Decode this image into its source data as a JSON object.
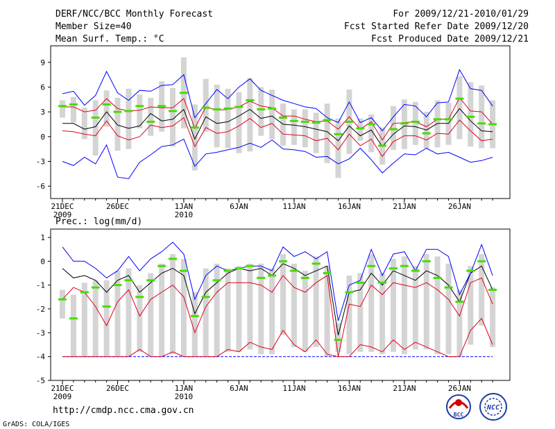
{
  "header": {
    "title": "DERF/NCC/BCC Monthly Forecast",
    "member_size": "Member Size=40",
    "variable": "Mean Surf. Temp.: °C",
    "period": "For 2009/12/21-2010/01/29",
    "started": "Fcst Started Refer Date 2009/12/20",
    "produced": "Fcst Produced Date 2009/12/21"
  },
  "footer": {
    "url": "http://cmdp.ncc.cma.gov.cn",
    "credit": "GrADS: COLA/IGES",
    "logo_bcc": "BCC",
    "logo_ncc": "NCC"
  },
  "colors": {
    "median": "#000000",
    "quartile": "#e0001a",
    "extreme": "#0000ff",
    "box": "#d4d4d4",
    "mean": "#44dd00"
  },
  "date_ticks": [
    {
      "label": "21DEC",
      "sub": "2009",
      "day": 0
    },
    {
      "label": "26DEC",
      "sub": "",
      "day": 5
    },
    {
      "label": "1JAN",
      "sub": "2010",
      "day": 11
    },
    {
      "label": "6JAN",
      "sub": "",
      "day": 16
    },
    {
      "label": "11JAN",
      "sub": "",
      "day": 21
    },
    {
      "label": "16JAN",
      "sub": "",
      "day": 26
    },
    {
      "label": "21JAN",
      "sub": "",
      "day": 31
    },
    {
      "label": "26JAN",
      "sub": "",
      "day": 36
    }
  ],
  "chart_data": [
    {
      "type": "line",
      "title": "Mean Surf. Temp.: °C",
      "ylabel": "°C",
      "ylim": [
        -7.5,
        11
      ],
      "yticks": [
        9,
        6,
        3,
        0,
        -3,
        -6
      ],
      "x": [
        0,
        1,
        2,
        3,
        4,
        5,
        6,
        7,
        8,
        9,
        10,
        11,
        12,
        13,
        14,
        15,
        16,
        17,
        18,
        19,
        20,
        21,
        22,
        23,
        24,
        25,
        26,
        27,
        28,
        29,
        30,
        31,
        32,
        33,
        34,
        35,
        36,
        37,
        38,
        39
      ],
      "series": [
        {
          "name": "max",
          "values": [
            5.2,
            5.5,
            3.8,
            5.0,
            7.9,
            5.3,
            4.4,
            5.6,
            5.5,
            6.2,
            6.3,
            7.5,
            2.3,
            4.0,
            5.7,
            4.6,
            6.0,
            7.0,
            5.6,
            5.0,
            4.4,
            4.0,
            3.6,
            3.4,
            2.3,
            1.7,
            4.2,
            1.7,
            2.3,
            0.7,
            2.4,
            3.9,
            3.7,
            2.4,
            4.1,
            4.2,
            8.1,
            5.8,
            5.6,
            3.7
          ]
        },
        {
          "name": "q75",
          "values": [
            3.6,
            3.6,
            3.0,
            3.2,
            4.6,
            3.4,
            3.1,
            3.2,
            3.6,
            3.5,
            3.5,
            4.6,
            1.0,
            3.6,
            3.2,
            3.3,
            3.6,
            4.3,
            3.7,
            3.5,
            2.5,
            2.5,
            2.1,
            1.8,
            1.9,
            0.9,
            2.4,
            0.9,
            1.8,
            -0.4,
            1.6,
            1.7,
            1.8,
            1.2,
            2.1,
            2.1,
            4.7,
            3.1,
            3.0,
            1.5
          ]
        },
        {
          "name": "median",
          "values": [
            1.6,
            1.6,
            0.9,
            1.2,
            3.0,
            1.4,
            1.0,
            1.3,
            2.8,
            1.9,
            2.1,
            3.3,
            -0.3,
            2.4,
            1.6,
            1.8,
            2.5,
            3.3,
            2.2,
            2.5,
            1.5,
            1.4,
            1.2,
            0.9,
            0.6,
            -0.5,
            1.3,
            0.1,
            0.8,
            -1.2,
            0.3,
            1.3,
            1.2,
            0.8,
            1.6,
            1.6,
            3.4,
            1.9,
            0.7,
            0.6
          ]
        },
        {
          "name": "q25",
          "values": [
            0.7,
            0.6,
            0.3,
            0.1,
            1.9,
            0.1,
            -0.4,
            0.0,
            1.4,
            1.1,
            1.3,
            2.3,
            -1.2,
            1.1,
            0.4,
            0.6,
            1.3,
            2.2,
            1.1,
            1.6,
            0.3,
            0.2,
            0.1,
            -0.5,
            -0.2,
            -1.6,
            0.3,
            -1.1,
            -0.3,
            -2.4,
            -0.6,
            0.1,
            0.1,
            -0.4,
            0.4,
            0.3,
            2.0,
            0.7,
            -0.5,
            -0.3
          ]
        },
        {
          "name": "min",
          "values": [
            -3.0,
            -3.5,
            -2.5,
            -3.3,
            -1.0,
            -4.9,
            -5.1,
            -3.1,
            -2.2,
            -1.2,
            -1.0,
            -0.3,
            -3.6,
            -2.1,
            -1.9,
            -1.6,
            -1.3,
            -0.8,
            -1.3,
            -0.4,
            -1.5,
            -1.6,
            -1.8,
            -2.5,
            -2.4,
            -3.3,
            -2.7,
            -1.4,
            -2.8,
            -4.4,
            -3.2,
            -2.1,
            -2.2,
            -1.4,
            -2.1,
            -1.9,
            -2.5,
            -3.1,
            -2.9,
            -2.5
          ]
        },
        {
          "name": "ensemble_mean",
          "values": [
            3.7,
            3.9,
            null,
            2.3,
            3.9,
            3.0,
            3.1,
            3.7,
            1.8,
            3.7,
            3.1,
            5.3,
            1.1,
            3.5,
            3.3,
            3.4,
            3.6,
            4.4,
            3.3,
            3.4,
            2.3,
            1.9,
            1.8,
            1.7,
            2.0,
            0.3,
            1.8,
            1.0,
            1.5,
            -1.1,
            0.9,
            1.6,
            1.8,
            0.4,
            2.1,
            2.1,
            4.6,
            2.4,
            1.6,
            1.5
          ]
        },
        {
          "name": "box_top",
          "values": [
            4.4,
            4.8,
            3.5,
            4.4,
            5.6,
            4.7,
            5.8,
            5.1,
            4.7,
            6.7,
            5.9,
            9.6,
            3.9,
            7.0,
            6.3,
            5.8,
            5.4,
            7.1,
            6.0,
            5.7,
            4.0,
            3.3,
            3.3,
            2.9,
            4.0,
            2.2,
            5.7,
            2.2,
            2.7,
            1.1,
            3.7,
            4.5,
            4.2,
            3.0,
            4.4,
            4.1,
            7.3,
            6.6,
            6.2,
            4.4
          ]
        },
        {
          "name": "box_bottom",
          "values": [
            2.3,
            1.7,
            -0.3,
            -2.3,
            1.2,
            -1.7,
            -1.5,
            1.0,
            0.1,
            0.6,
            -1.2,
            1.0,
            -4.1,
            0.6,
            -1.3,
            -1.4,
            -2.0,
            -1.8,
            0.1,
            -0.3,
            -1.1,
            -1.0,
            -1.3,
            -2.0,
            -3.2,
            -5.0,
            -2.1,
            -0.5,
            -1.9,
            -3.4,
            -1.6,
            -1.5,
            -1.0,
            -1.4,
            -1.3,
            -1.0,
            -0.3,
            -1.2,
            -1.4,
            -1.4
          ]
        }
      ]
    },
    {
      "type": "line",
      "title": "Prec.: log(mm/d)",
      "ylabel": "log(mm/d)",
      "ylim": [
        -5,
        1.35
      ],
      "yticks": [
        1,
        0,
        -1,
        -2,
        -3,
        -4,
        -5
      ],
      "x": [
        0,
        1,
        2,
        3,
        4,
        5,
        6,
        7,
        8,
        9,
        10,
        11,
        12,
        13,
        14,
        15,
        16,
        17,
        18,
        19,
        20,
        21,
        22,
        23,
        24,
        25,
        26,
        27,
        28,
        29,
        30,
        31,
        32,
        33,
        34,
        35,
        36,
        37,
        38,
        39
      ],
      "series": [
        {
          "name": "max",
          "values": [
            0.6,
            0.0,
            0.0,
            -0.3,
            -0.7,
            -0.4,
            0.2,
            -0.4,
            0.1,
            0.4,
            0.8,
            0.3,
            -1.6,
            -0.6,
            -0.2,
            -0.4,
            -0.3,
            -0.2,
            -0.2,
            -0.4,
            0.6,
            0.2,
            0.4,
            0.1,
            0.4,
            -2.5,
            -1.0,
            -0.8,
            0.5,
            -0.6,
            0.3,
            0.4,
            -0.4,
            0.5,
            0.5,
            0.2,
            -1.4,
            -0.5,
            0.7,
            -0.6
          ]
        },
        {
          "name": "median",
          "values": [
            -0.3,
            -0.7,
            -0.6,
            -0.8,
            -1.3,
            -0.8,
            -0.6,
            -1.3,
            -0.9,
            -0.5,
            -0.3,
            -0.6,
            -2.2,
            -1.3,
            -0.9,
            -0.5,
            -0.3,
            -0.4,
            -0.3,
            -0.6,
            -0.1,
            -0.3,
            -0.6,
            -0.4,
            -0.2,
            -3.1,
            -1.3,
            -1.2,
            -0.5,
            -1.0,
            -0.4,
            -0.6,
            -0.8,
            -0.4,
            -0.6,
            -1.0,
            -1.7,
            -0.5,
            -0.2,
            -1.2
          ]
        },
        {
          "name": "q25",
          "values": [
            -1.6,
            -1.1,
            -1.3,
            -1.9,
            -2.7,
            -1.7,
            -1.2,
            -2.3,
            -1.6,
            -1.3,
            -1.0,
            -1.5,
            -3.0,
            -1.9,
            -1.3,
            -0.9,
            -0.9,
            -0.9,
            -1.0,
            -1.3,
            -0.6,
            -1.1,
            -1.3,
            -0.9,
            -0.6,
            -4.0,
            -1.8,
            -1.9,
            -1.0,
            -1.4,
            -0.9,
            -1.0,
            -1.1,
            -0.9,
            -1.2,
            -1.6,
            -2.3,
            -0.9,
            -0.7,
            -1.8
          ]
        },
        {
          "name": "q10",
          "values": [
            -4,
            -4,
            -4,
            -4,
            -4,
            -4,
            -4,
            -3.7,
            -4,
            -4,
            -3.8,
            -4,
            -4,
            -4,
            -4,
            -3.7,
            -3.8,
            -3.4,
            -3.6,
            -3.7,
            -2.9,
            -3.5,
            -3.8,
            -3.3,
            -3.9,
            -4,
            -4,
            -3.5,
            -3.6,
            -3.8,
            -3.3,
            -3.7,
            -3.4,
            -3.6,
            -3.8,
            -4,
            -4,
            -2.9,
            -2.4,
            -3.5
          ]
        },
        {
          "name": "min",
          "values": [
            -4,
            -4,
            -4,
            -4,
            -4,
            -4,
            -4,
            -4,
            -4,
            -4,
            -4,
            -4,
            -4,
            -4,
            -4,
            -4,
            -4,
            -4,
            -4,
            -4,
            -4,
            -4,
            -4,
            -4,
            -4,
            -4,
            -4,
            -4,
            -4,
            -4,
            -4,
            -4,
            -4,
            -4,
            -4,
            -4,
            -4,
            -4,
            -4,
            -4
          ]
        },
        {
          "name": "ensemble_mean",
          "values": [
            -1.6,
            -2.4,
            -1.3,
            -1.1,
            -1.9,
            -1.0,
            -0.8,
            -1.5,
            -0.8,
            -0.2,
            0.1,
            -0.4,
            -2.3,
            -1.5,
            -0.8,
            -0.4,
            -0.3,
            -0.2,
            -0.7,
            -0.6,
            0.0,
            -0.4,
            -0.7,
            -0.1,
            -0.5,
            -3.3,
            -1.3,
            -0.9,
            -0.2,
            -0.9,
            -0.3,
            -0.2,
            -0.4,
            0.0,
            -0.7,
            -1.1,
            -1.7,
            -0.4,
            0.0,
            -1.2
          ]
        },
        {
          "name": "box_top",
          "values": [
            -1.2,
            -1.4,
            -0.9,
            -0.8,
            -0.8,
            -0.4,
            -0.3,
            -1.0,
            -0.5,
            -0.1,
            0.3,
            0.1,
            -1.3,
            -0.3,
            -0.1,
            -0.3,
            -0.2,
            -0.1,
            -0.1,
            -0.3,
            0.3,
            -0.1,
            -0.4,
            0.2,
            -0.2,
            -2.6,
            -0.6,
            -0.5,
            0.3,
            -0.5,
            0.1,
            0.2,
            -0.2,
            0.3,
            0.2,
            -0.1,
            -1.2,
            -0.2,
            0.3,
            -1.1
          ]
        },
        {
          "name": "box_bottom",
          "values": [
            -2.4,
            -4.0,
            -4.0,
            -4.0,
            -4.0,
            -4.0,
            -4.0,
            -3.8,
            -4.0,
            -4.0,
            -3.9,
            -4.0,
            -4.0,
            -4.0,
            -4.0,
            -3.8,
            -3.8,
            -3.7,
            -3.9,
            -3.9,
            -3.1,
            -3.6,
            -3.8,
            -3.6,
            -4.0,
            -3.8,
            -3.9,
            -3.8,
            -3.8,
            -3.9,
            -3.8,
            -3.9,
            -3.7,
            -3.7,
            -3.9,
            -3.9,
            -4.0,
            -3.5,
            -2.7,
            -3.6
          ]
        }
      ]
    }
  ]
}
